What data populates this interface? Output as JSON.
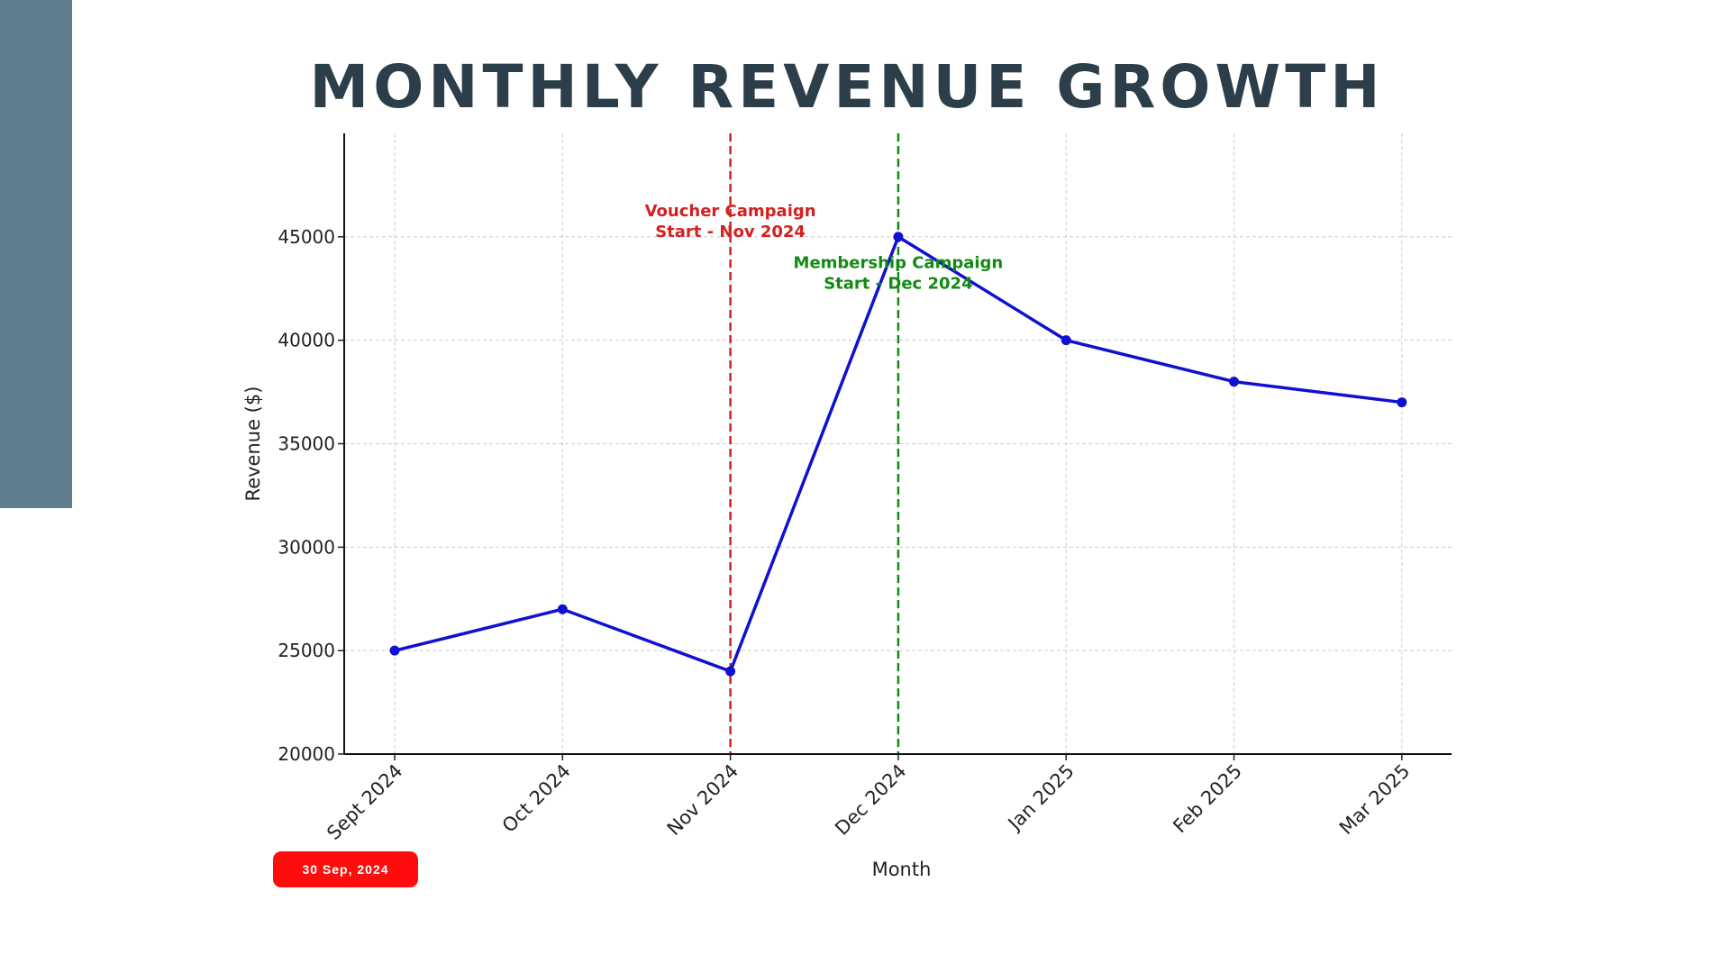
{
  "slide": {
    "title": "MONTHLY REVENUE GROWTH",
    "date_badge": "30 Sep, 2024",
    "colors": {
      "sidebar": "#5f7d8c",
      "title": "#2c3e4a",
      "badge": "#ff0d0d"
    }
  },
  "chart_data": {
    "type": "line",
    "categories": [
      "Sept 2024",
      "Oct 2024",
      "Nov 2024",
      "Dec 2024",
      "Jan 2025",
      "Feb 2025",
      "Mar 2025"
    ],
    "series": [
      {
        "values": [
          25000,
          27000,
          24000,
          45000,
          40000,
          38000,
          37000
        ],
        "color": "#1010d0"
      }
    ],
    "xlabel": "Month",
    "ylabel": "Revenue ($)",
    "ylim": [
      20000,
      50000
    ],
    "yticks": [
      20000,
      25000,
      30000,
      35000,
      40000,
      45000
    ],
    "grid": true,
    "annotations": [
      {
        "category": "Nov 2024",
        "line_style": "dashed",
        "color": "#d42020",
        "text_lines": [
          "Voucher Campaign",
          "Start - Nov 2024"
        ],
        "text_y": 46000
      },
      {
        "category": "Dec 2024",
        "line_style": "dashed",
        "color": "#138a13",
        "text_lines": [
          "Membership Campaign",
          "Start - Dec 2024"
        ],
        "text_y": 43500
      }
    ]
  }
}
